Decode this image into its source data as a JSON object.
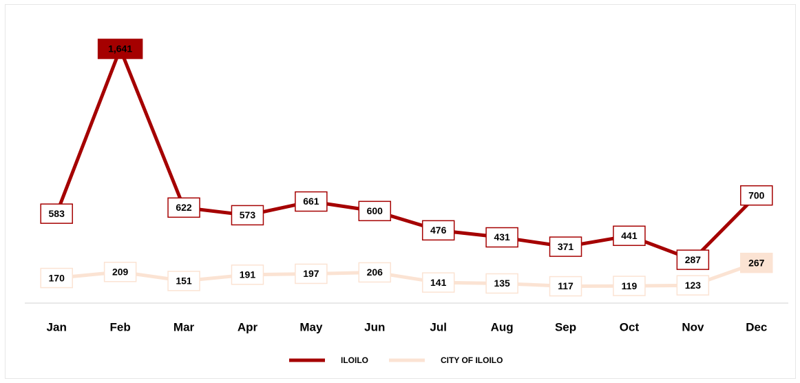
{
  "chart_data": {
    "type": "line",
    "categories": [
      "Jan",
      "Feb",
      "Mar",
      "Apr",
      "May",
      "Jun",
      "Jul",
      "Aug",
      "Sep",
      "Oct",
      "Nov",
      "Dec"
    ],
    "series": [
      {
        "name": "ILOILO",
        "color": "#a50000",
        "values": [
          583,
          1641,
          622,
          573,
          661,
          600,
          476,
          431,
          371,
          441,
          287,
          700
        ],
        "value_labels": [
          "583",
          "1,641",
          "622",
          "573",
          "661",
          "600",
          "476",
          "431",
          "371",
          "441",
          "287",
          "700"
        ]
      },
      {
        "name": "CITY OF ILOILO",
        "color": "#fbe3d3",
        "values": [
          170,
          209,
          151,
          191,
          197,
          206,
          141,
          135,
          117,
          119,
          123,
          267
        ],
        "value_labels": [
          "170",
          "209",
          "151",
          "191",
          "197",
          "206",
          "141",
          "135",
          "117",
          "119",
          "123",
          "267"
        ]
      }
    ],
    "ylim": [
      0,
      1800
    ],
    "legend": "bottom"
  }
}
